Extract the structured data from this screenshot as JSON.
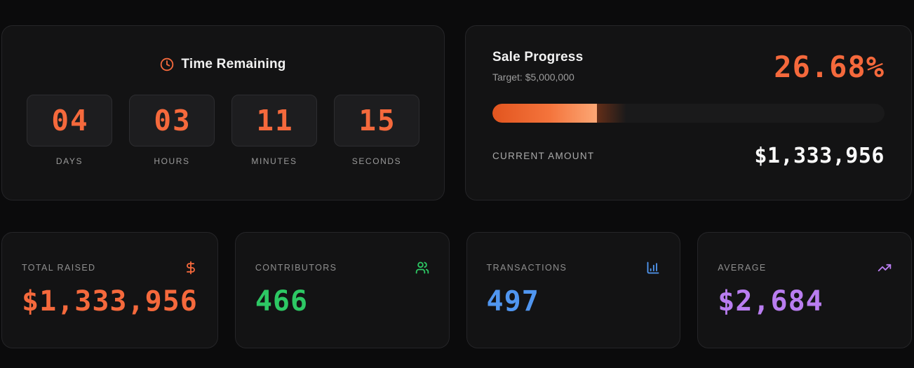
{
  "countdown": {
    "title": "Time Remaining",
    "units": [
      {
        "value": "04",
        "label": "DAYS"
      },
      {
        "value": "03",
        "label": "HOURS"
      },
      {
        "value": "11",
        "label": "MINUTES"
      },
      {
        "value": "15",
        "label": "SECONDS"
      }
    ]
  },
  "progress": {
    "title": "Sale Progress",
    "target": "Target: $5,000,000",
    "percent": "26.68%",
    "percent_value": 26.68,
    "current_label": "CURRENT AMOUNT",
    "current_value": "$1,333,956"
  },
  "stats": [
    {
      "label": "TOTAL RAISED",
      "value": "$1,333,956",
      "icon": "dollar-icon",
      "color": "#f5693c"
    },
    {
      "label": "CONTRIBUTORS",
      "value": "466",
      "icon": "users-icon",
      "color": "#2dc864"
    },
    {
      "label": "TRANSACTIONS",
      "value": "497",
      "icon": "bar-chart-icon",
      "color": "#5096f0"
    },
    {
      "label": "AVERAGE",
      "value": "$2,684",
      "icon": "trending-up-icon",
      "color": "#b97df0"
    }
  ],
  "colors": {
    "accent_orange": "#f5693c",
    "green": "#2dc864",
    "blue": "#5096f0",
    "purple": "#b97df0"
  }
}
